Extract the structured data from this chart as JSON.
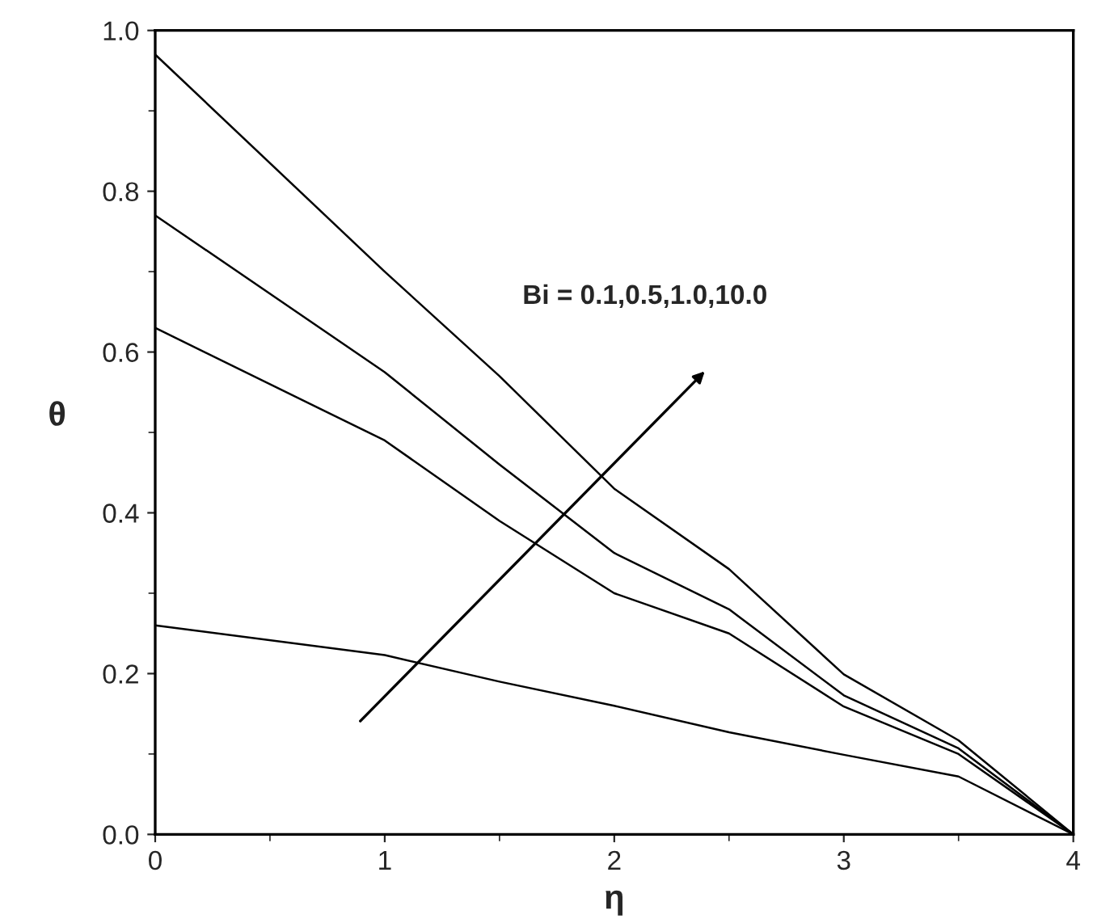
{
  "chart_data": {
    "type": "line",
    "xlabel": "η",
    "ylabel": "θ",
    "annotations": [
      "Bi = 0.1,0.5,1.0,10.0"
    ],
    "x": [
      0,
      1,
      1.5,
      2,
      2.5,
      3,
      3.5,
      4
    ],
    "series": [
      {
        "color": "#000000",
        "values": [
          0.26,
          0.223,
          0.19,
          0.16,
          0.127,
          0.099,
          0.072,
          0
        ]
      },
      {
        "color": "#000000",
        "values": [
          0.63,
          0.49,
          0.39,
          0.3,
          0.25,
          0.159,
          0.1,
          0
        ]
      },
      {
        "color": "#000000",
        "values": [
          0.77,
          0.575,
          0.46,
          0.35,
          0.28,
          0.173,
          0.107,
          0
        ]
      },
      {
        "color": "#000000",
        "values": [
          0.97,
          0.7,
          0.57,
          0.43,
          0.33,
          0.199,
          0.117,
          0
        ]
      }
    ],
    "xlim": [
      0,
      4
    ],
    "ylim": [
      0,
      1
    ],
    "xticks": [
      0,
      1,
      2,
      3,
      4
    ],
    "yticks": [
      {
        "value": 0,
        "label": "0.0"
      },
      {
        "value": 0.2,
        "label": "0.2"
      },
      {
        "value": 0.4,
        "label": "0.4"
      },
      {
        "value": 0.6,
        "label": "0.6"
      },
      {
        "value": 0.8,
        "label": "0.8"
      },
      {
        "value": 1,
        "label": "1.0"
      }
    ],
    "grid": false,
    "legend": false,
    "marker": "none",
    "line_style": "solid"
  }
}
